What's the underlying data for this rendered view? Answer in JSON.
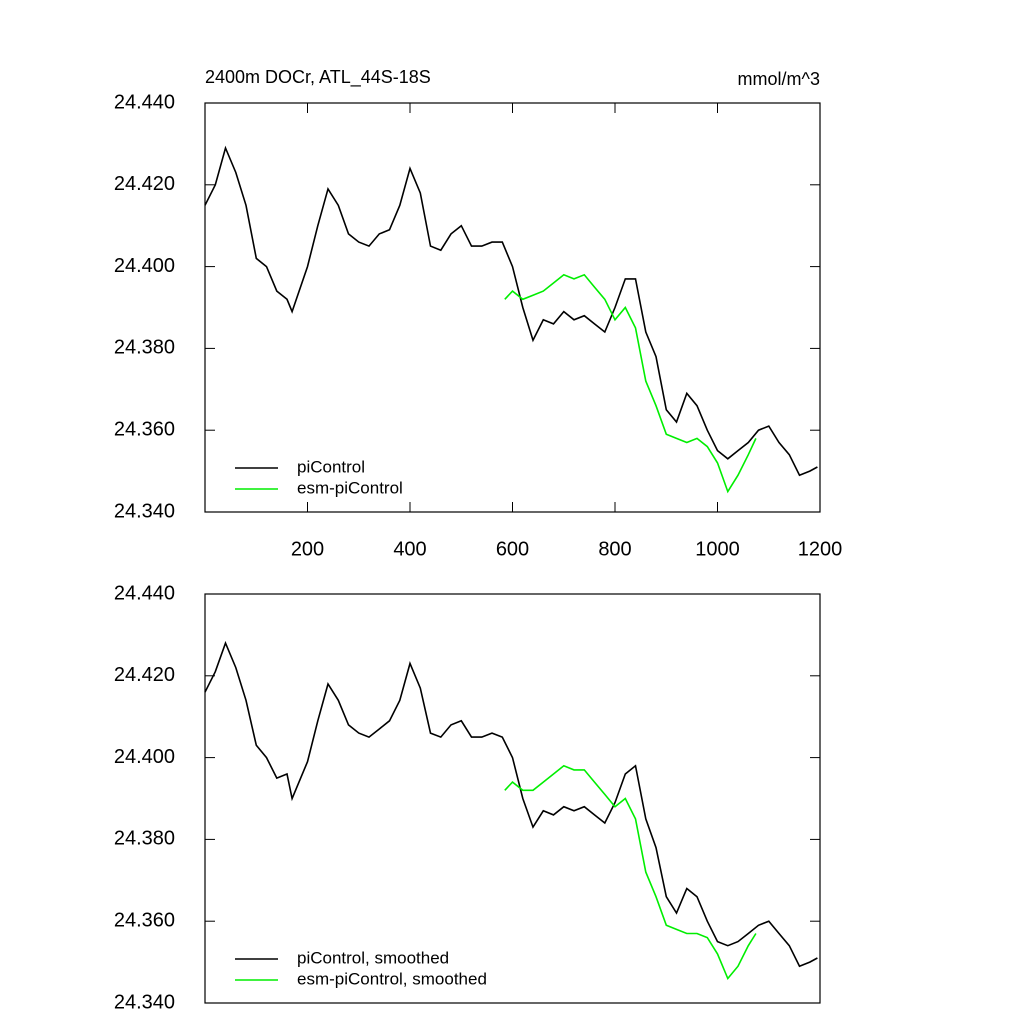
{
  "chart_data": [
    {
      "type": "line",
      "title": "2400m DOCr, ATL_44S-18S",
      "units": "mmol/m^3",
      "xlim": [
        0,
        1200
      ],
      "xticks": [
        200,
        400,
        600,
        800,
        1000,
        1200
      ],
      "ylim": [
        24.34,
        24.44
      ],
      "yticks": [
        {
          "value": 24.34,
          "label": "24.340"
        },
        {
          "value": 24.36,
          "label": "24.360"
        },
        {
          "value": 24.38,
          "label": "24.380"
        },
        {
          "value": 24.4,
          "label": "24.400"
        },
        {
          "value": 24.42,
          "label": "24.420"
        },
        {
          "value": 24.44,
          "label": "24.440"
        }
      ],
      "grid": false,
      "legend_position": "lower left",
      "series": [
        {
          "name": "piControl",
          "color": "#000000",
          "x": [
            0,
            20,
            40,
            60,
            80,
            100,
            120,
            140,
            160,
            170,
            200,
            220,
            240,
            260,
            280,
            300,
            320,
            340,
            360,
            380,
            400,
            420,
            440,
            460,
            480,
            500,
            520,
            540,
            560,
            580,
            600,
            620,
            640,
            660,
            680,
            700,
            720,
            740,
            760,
            780,
            800,
            820,
            840,
            860,
            880,
            900,
            920,
            940,
            960,
            980,
            1000,
            1020,
            1040,
            1060,
            1080,
            1100,
            1120,
            1140,
            1160,
            1180,
            1195
          ],
          "values": [
            24.415,
            24.42,
            24.429,
            24.423,
            24.415,
            24.402,
            24.4,
            24.394,
            24.392,
            24.389,
            24.4,
            24.41,
            24.419,
            24.415,
            24.408,
            24.406,
            24.405,
            24.408,
            24.409,
            24.415,
            24.424,
            24.418,
            24.405,
            24.404,
            24.408,
            24.41,
            24.405,
            24.405,
            24.406,
            24.406,
            24.4,
            24.39,
            24.382,
            24.387,
            24.386,
            24.389,
            24.387,
            24.388,
            24.386,
            24.384,
            24.39,
            24.397,
            24.397,
            24.384,
            24.378,
            24.365,
            24.362,
            24.369,
            24.366,
            24.36,
            24.355,
            24.353,
            24.355,
            24.357,
            24.36,
            24.361,
            24.357,
            24.354,
            24.349,
            24.35,
            24.351
          ]
        },
        {
          "name": "esm-piControl",
          "color": "#00ee00",
          "x": [
            585,
            600,
            620,
            640,
            660,
            680,
            700,
            720,
            740,
            760,
            780,
            800,
            820,
            840,
            860,
            880,
            900,
            920,
            940,
            960,
            980,
            1000,
            1020,
            1040,
            1060,
            1075
          ],
          "values": [
            24.392,
            24.394,
            24.392,
            24.393,
            24.394,
            24.396,
            24.398,
            24.397,
            24.398,
            24.395,
            24.392,
            24.387,
            24.39,
            24.385,
            24.372,
            24.366,
            24.359,
            24.358,
            24.357,
            24.358,
            24.356,
            24.352,
            24.345,
            24.349,
            24.354,
            24.358
          ]
        }
      ]
    },
    {
      "type": "line",
      "xlim": [
        0,
        1200
      ],
      "ylim": [
        24.34,
        24.44
      ],
      "yticks": [
        {
          "value": 24.34,
          "label": "24.340"
        },
        {
          "value": 24.36,
          "label": "24.360"
        },
        {
          "value": 24.38,
          "label": "24.380"
        },
        {
          "value": 24.4,
          "label": "24.400"
        },
        {
          "value": 24.42,
          "label": "24.420"
        },
        {
          "value": 24.44,
          "label": "24.440"
        }
      ],
      "grid": false,
      "legend_position": "lower left",
      "series": [
        {
          "name": "piControl, smoothed",
          "color": "#000000",
          "x": [
            0,
            20,
            40,
            60,
            80,
            100,
            120,
            140,
            160,
            170,
            200,
            220,
            240,
            260,
            280,
            300,
            320,
            340,
            360,
            380,
            400,
            420,
            440,
            460,
            480,
            500,
            520,
            540,
            560,
            580,
            600,
            620,
            640,
            660,
            680,
            700,
            720,
            740,
            760,
            780,
            800,
            820,
            840,
            860,
            880,
            900,
            920,
            940,
            960,
            980,
            1000,
            1020,
            1040,
            1060,
            1080,
            1100,
            1120,
            1140,
            1160,
            1180,
            1195
          ],
          "values": [
            24.416,
            24.421,
            24.428,
            24.422,
            24.414,
            24.403,
            24.4,
            24.395,
            24.396,
            24.39,
            24.399,
            24.409,
            24.418,
            24.414,
            24.408,
            24.406,
            24.405,
            24.407,
            24.409,
            24.414,
            24.423,
            24.417,
            24.406,
            24.405,
            24.408,
            24.409,
            24.405,
            24.405,
            24.406,
            24.405,
            24.4,
            24.39,
            24.383,
            24.387,
            24.386,
            24.388,
            24.387,
            24.388,
            24.386,
            24.384,
            24.389,
            24.396,
            24.398,
            24.385,
            24.378,
            24.366,
            24.362,
            24.368,
            24.366,
            24.36,
            24.355,
            24.354,
            24.355,
            24.357,
            24.359,
            24.36,
            24.357,
            24.354,
            24.349,
            24.35,
            24.351
          ]
        },
        {
          "name": "esm-piControl, smoothed",
          "color": "#00ee00",
          "x": [
            585,
            600,
            620,
            640,
            660,
            680,
            700,
            720,
            740,
            760,
            780,
            800,
            820,
            840,
            860,
            880,
            900,
            920,
            940,
            960,
            980,
            1000,
            1020,
            1040,
            1060,
            1075
          ],
          "values": [
            24.392,
            24.394,
            24.392,
            24.392,
            24.394,
            24.396,
            24.398,
            24.397,
            24.397,
            24.394,
            24.391,
            24.388,
            24.39,
            24.385,
            24.372,
            24.366,
            24.359,
            24.358,
            24.357,
            24.357,
            24.356,
            24.352,
            24.346,
            24.349,
            24.354,
            24.357
          ]
        }
      ]
    }
  ]
}
